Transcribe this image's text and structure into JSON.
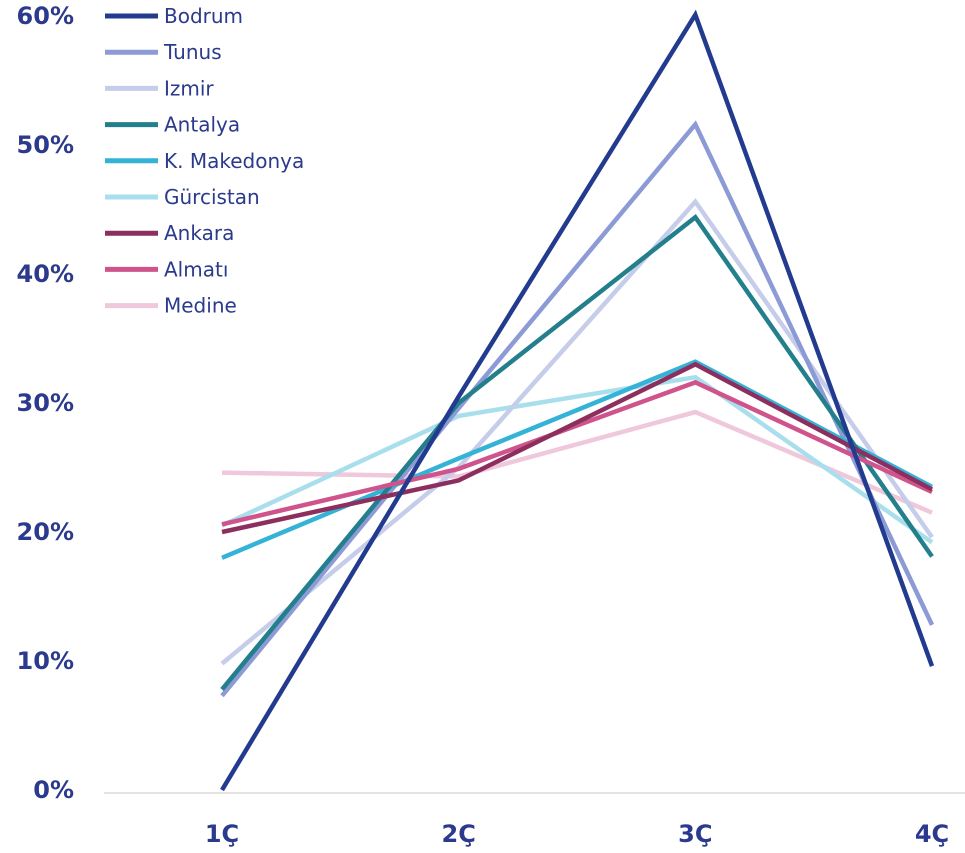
{
  "chart_data": {
    "type": "line",
    "categories": [
      "1Ç",
      "2Ç",
      "3Ç",
      "4Ç"
    ],
    "ylim": [
      0,
      60
    ],
    "yticks": [
      "0%",
      "10%",
      "20%",
      "30%",
      "40%",
      "50%",
      "60%"
    ],
    "ytick_values": [
      0,
      10,
      20,
      30,
      40,
      50,
      60
    ],
    "grid": false,
    "legend_position": "top-left",
    "series": [
      {
        "name": "Bodrum",
        "color": "#223b8f",
        "values": [
          0,
          30.5,
          60.1,
          9.6
        ]
      },
      {
        "name": "Tunus",
        "color": "#8c9bd6",
        "values": [
          7.3,
          29.6,
          51.6,
          12.8
        ]
      },
      {
        "name": "Izmir",
        "color": "#c6cdea",
        "values": [
          9.8,
          25,
          45.6,
          19.6
        ]
      },
      {
        "name": "Antalya",
        "color": "#237f8c",
        "values": [
          7.8,
          30,
          44.4,
          18.1
        ]
      },
      {
        "name": "K. Makedonya",
        "color": "#34b3d6",
        "values": [
          18,
          25.7,
          33.2,
          23.5
        ]
      },
      {
        "name": "Gürcistan",
        "color": "#a9dfed",
        "values": [
          20.5,
          29,
          32,
          19.2
        ]
      },
      {
        "name": "Ankara",
        "color": "#8c2f5e",
        "values": [
          20,
          24,
          33,
          23.3
        ]
      },
      {
        "name": "Almatı",
        "color": "#d0548c",
        "values": [
          20.6,
          24.9,
          31.6,
          23.1
        ]
      },
      {
        "name": "Medine",
        "color": "#efc8db",
        "values": [
          24.6,
          24.3,
          29.3,
          21.5
        ]
      }
    ]
  }
}
